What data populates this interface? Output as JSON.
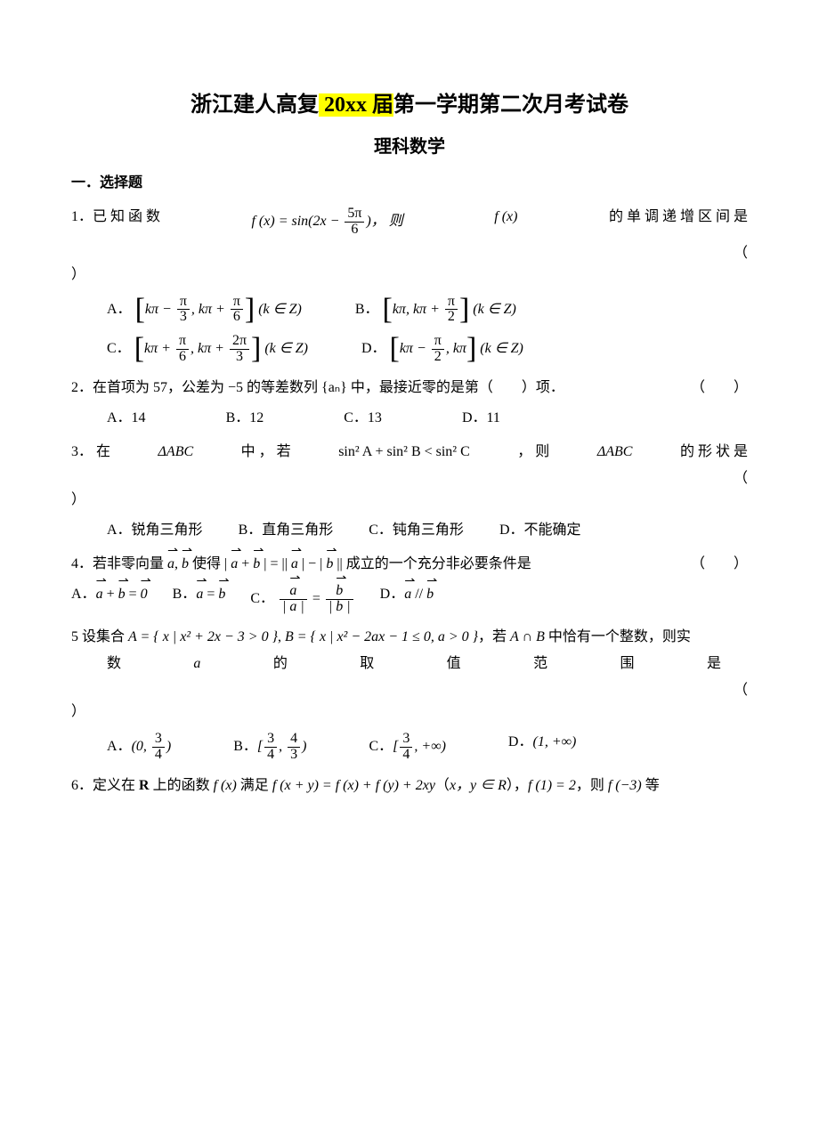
{
  "title_pre": "浙江建人高复",
  "title_hl": " 20xx 届",
  "title_post": "第一学期第二次月考试卷",
  "subtitle": "理科数学",
  "section1": "一．选择题",
  "q1_head_1": "1．已 知 函 数 ",
  "q1_func": "f (x) = sin(2x − ",
  "q1_frac_n": "5π",
  "q1_frac_d": "6",
  "q1_head_2": ")， 则 ",
  "q1_fx": "f (x)",
  "q1_head_3": " 的 单 调 递 增 区 间 是",
  "q1_head_4": "（",
  "q1_close": "）",
  "q1a_pre": "A．",
  "q1a_l1n": "π",
  "q1a_l1d": "3",
  "q1a_l2n": "π",
  "q1a_l2d": "6",
  "q1a_tail": "(k ∈ Z)",
  "q1_kpi": "kπ",
  "q1_minus": " − ",
  "q1_plus": " + ",
  "q1_comma": ", ",
  "q1b_pre": "B．",
  "q1b_l2n": "π",
  "q1b_l2d": "2",
  "q1c_pre": "C．",
  "q1c_l1n": "π",
  "q1c_l1d": "6",
  "q1c_l2n": "2π",
  "q1c_l2d": "3",
  "q1d_pre": "D．",
  "q1d_l1n": "π",
  "q1d_l1d": "2",
  "q2_text": "2．在首项为 57，公差为 −5 的等差数列 {aₙ} 中，最接近零的是第（　　）项．",
  "q2_paren": "（　　）",
  "q2a": "A．14",
  "q2b": "B．12",
  "q2c": "C．13",
  "q2d": "D．11",
  "q3_text1": "3． 在 ",
  "q3_text2": "ΔABC",
  "q3_text3": " 中 ， 若 ",
  "q3_text4": "sin² A + sin² B < sin² C",
  "q3_text5": " ， 则 ",
  "q3_text6": "ΔABC",
  "q3_text7": " 的 形 状 是",
  "q3_open": "（",
  "q3_close": "）",
  "q3a": "A．锐角三角形",
  "q3b": "B．直角三角形",
  "q3c": "C．钝角三角形",
  "q3d": "D．不能确定",
  "q4_text1": "4．若非零向量 ",
  "q4_a": "a",
  "q4_b": "b",
  "q4_text2": " 使得 | ",
  "q4_text3": " | = || ",
  "q4_text4": " | − | ",
  "q4_text5": " || 成立的一个充分非必要条件是",
  "q4_paren": "（　　）",
  "q4a_pre": "A．",
  "q4a_body1": " + ",
  "q4a_body2": " = ",
  "q4a_zero": "0",
  "q4b_pre": "B．",
  "q4b_body": " = ",
  "q4c_pre": "C．",
  "q4c_eq": " = ",
  "q4c_abs_a": "| a |",
  "q4c_abs_b": "| b |",
  "q4d_pre": "D．",
  "q4d_body": " // ",
  "q4_comma": ", ",
  "q5_text1": "5 设集合 ",
  "q5_A1": "A = { x | x² + 2x − 3 > 0 }",
  "q5_text2": ", ",
  "q5_B1": "B = { x | x² − 2ax − 1 ≤ 0, a > 0 }",
  "q5_text3": "，若 ",
  "q5_AcapB": "A ∩ B",
  "q5_text4": " 中恰有一个整数，则实",
  "q5_sub_1": "数",
  "q5_sub_2": "a",
  "q5_sub_3": "的",
  "q5_sub_4": "取",
  "q5_sub_5": "值",
  "q5_sub_6": "范",
  "q5_sub_7": "围",
  "q5_sub_8": "是",
  "q5_open": "（",
  "q5_close": "）",
  "q5a_pre": "A．",
  "q5a_body": "(0, ",
  "q5a_n": "3",
  "q5a_d": "4",
  "q5a_end": ")",
  "q5b_pre": "B．",
  "q5b_body": "[",
  "q5b_n1": "3",
  "q5b_d1": "4",
  "q5b_c": ", ",
  "q5b_n2": "4",
  "q5b_d2": "3",
  "q5b_end": ")",
  "q5c_pre": "C．",
  "q5c_body": "[",
  "q5c_n": "3",
  "q5c_d": "4",
  "q5c_end": ", +∞)",
  "q5d_pre": "D．",
  "q5d_body": "(1, +∞)",
  "q6_text1": "6．定义在 ",
  "q6_R": "R",
  "q6_text2": " 上的函数 ",
  "q6_fx": "f (x)",
  "q6_text3": " 满足 ",
  "q6_eq": "f (x + y) = f (x) + f (y) + 2xy",
  "q6_text4": "（",
  "q6_xy": "x，y ∈ R",
  "q6_text5": "），",
  "q6_f1": "f (1) = 2",
  "q6_text6": "，则 ",
  "q6_fneg3": "f (−3)",
  "q6_text7": " 等"
}
